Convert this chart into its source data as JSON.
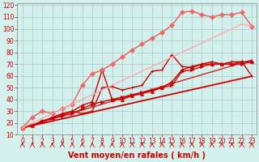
{
  "title": "",
  "xlabel": "Vent moyen/en rafales ( km/h )",
  "ylabel": "",
  "bg_color": "#d4f0ec",
  "grid_color": "#aacccc",
  "xlim": [
    -0.5,
    23.5
  ],
  "ylim": [
    10,
    122
  ],
  "yticks": [
    10,
    20,
    30,
    40,
    50,
    60,
    70,
    80,
    90,
    100,
    110,
    120
  ],
  "xticks": [
    0,
    1,
    2,
    3,
    4,
    5,
    6,
    7,
    8,
    9,
    10,
    11,
    12,
    13,
    14,
    15,
    16,
    17,
    18,
    19,
    20,
    21,
    22,
    23
  ],
  "series": [
    {
      "x": [
        0,
        1,
        2,
        3,
        4,
        5,
        6,
        7,
        8,
        9,
        10,
        11,
        12,
        13,
        14,
        15,
        16,
        17,
        18,
        19,
        20,
        21,
        22,
        23
      ],
      "y": [
        16,
        17.9,
        19.8,
        21.7,
        23.6,
        25.5,
        27.4,
        29.3,
        31.2,
        33.1,
        35,
        36.9,
        38.8,
        40.7,
        42.6,
        44.5,
        46.4,
        48.3,
        50.2,
        52.1,
        54,
        55.9,
        57.8,
        59.7
      ],
      "color": "#cc0000",
      "lw": 1.3,
      "marker": null,
      "ms": 0
    },
    {
      "x": [
        0,
        1,
        2,
        3,
        4,
        5,
        6,
        7,
        8,
        9,
        10,
        11,
        12,
        13,
        14,
        15,
        16,
        17,
        18,
        19,
        20,
        21,
        22,
        23
      ],
      "y": [
        16,
        18.5,
        21,
        23.5,
        26,
        28.5,
        31,
        33.5,
        36,
        38.5,
        41,
        43.5,
        46,
        48.5,
        51,
        53.5,
        56,
        58.5,
        61,
        63.5,
        66,
        68.5,
        71,
        73.5
      ],
      "color": "#cc2222",
      "lw": 1.0,
      "marker": null,
      "ms": 0
    },
    {
      "x": [
        0,
        1,
        2,
        3,
        4,
        5,
        6,
        7,
        8,
        9,
        10,
        11,
        12,
        13,
        14,
        15,
        16,
        17,
        18,
        19,
        20,
        21,
        22,
        23
      ],
      "y": [
        16,
        18,
        22,
        24,
        27,
        30,
        28,
        30,
        50,
        51,
        48,
        50,
        52,
        64,
        65,
        78,
        68,
        67,
        70,
        72,
        70,
        72,
        72,
        60
      ],
      "color": "#cc0000",
      "lw": 1.0,
      "marker": "+",
      "ms": 3.5
    },
    {
      "x": [
        0,
        1,
        2,
        3,
        4,
        5,
        6,
        7,
        8,
        9,
        10,
        11,
        12,
        13,
        14,
        15,
        16,
        17,
        18,
        19,
        20,
        21,
        22,
        23
      ],
      "y": [
        16,
        18,
        21,
        25,
        28,
        30,
        35,
        38,
        65,
        40,
        40,
        43,
        45,
        47,
        50,
        55,
        65,
        68,
        70,
        70,
        70,
        70,
        72,
        72
      ],
      "color": "#cc0000",
      "lw": 1.0,
      "marker": "^",
      "ms": 3.0
    },
    {
      "x": [
        0,
        1,
        2,
        3,
        4,
        5,
        6,
        7,
        8,
        9,
        10,
        11,
        12,
        13,
        14,
        15,
        16,
        17,
        18,
        19,
        20,
        21,
        22,
        23
      ],
      "y": [
        16,
        18,
        21,
        24,
        26,
        28,
        32,
        36,
        38,
        40,
        42,
        44,
        46,
        48,
        50,
        52,
        64,
        65,
        68,
        70,
        70,
        70,
        70,
        72
      ],
      "color": "#cc0000",
      "lw": 1.0,
      "marker": ">",
      "ms": 3.0
    },
    {
      "x": [
        0,
        1,
        2,
        3,
        4,
        5,
        6,
        7,
        8,
        9,
        10,
        11,
        12,
        13,
        14,
        15,
        16,
        17,
        18,
        19,
        20,
        21,
        22,
        23
      ],
      "y": [
        16,
        25,
        30,
        28,
        32,
        36,
        52,
        62,
        65,
        70,
        76,
        82,
        87,
        92,
        97,
        103,
        114,
        115,
        112,
        110,
        112,
        112,
        114,
        102
      ],
      "color": "#ee6666",
      "lw": 1.1,
      "marker": "D",
      "ms": 3.0
    },
    {
      "x": [
        0,
        1,
        2,
        3,
        4,
        5,
        6,
        7,
        8,
        9,
        10,
        11,
        12,
        13,
        14,
        15,
        16,
        17,
        18,
        19,
        20,
        21,
        22,
        23
      ],
      "y": [
        16,
        20,
        24,
        28,
        32,
        36,
        40,
        44,
        48,
        52,
        56,
        60,
        64,
        68,
        72,
        76,
        80,
        84,
        88,
        92,
        96,
        100,
        104,
        102
      ],
      "color": "#ffaaaa",
      "lw": 1.0,
      "marker": null,
      "ms": 0
    }
  ],
  "arrow_color": "#cc0000",
  "tick_label_color": "#cc0000",
  "axis_label_color": "#cc0000",
  "tick_label_size": 5.5,
  "xlabel_size": 7,
  "marker_size": 3
}
